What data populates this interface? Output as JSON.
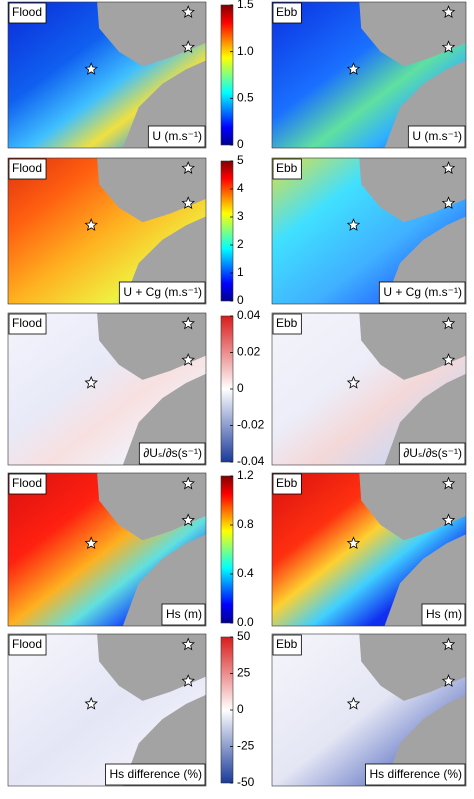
{
  "figure": {
    "rows": [
      {
        "left_label": "Flood",
        "right_label": "Ebb",
        "unit": "U (m.s⁻¹)",
        "colormap": "jet",
        "ylim": [
          0,
          1.5
        ],
        "yticks": [
          0,
          0.5,
          {
            "value": 1,
            "label": "1.0"
          },
          1.5
        ]
      },
      {
        "left_label": "Flood",
        "right_label": "Ebb",
        "unit": "U + Cg (m.s⁻¹)",
        "colormap": "jet",
        "ylim": [
          0,
          5
        ],
        "yticks": [
          0,
          1,
          2,
          3,
          4,
          5
        ]
      },
      {
        "left_label": "Flood",
        "right_label": "Ebb",
        "unit": "∂Uₛ/∂s(s⁻¹)",
        "colormap": "diverging",
        "ylim": [
          -0.04,
          0.04
        ],
        "yticks": [
          -0.04,
          -0.02,
          0,
          0.02,
          0.04
        ]
      },
      {
        "left_label": "Flood",
        "right_label": "Ebb",
        "unit": "Hs (m)",
        "colormap": "jet",
        "ylim": [
          0,
          1.2
        ],
        "yticks": [
          {
            "value": 0,
            "label": "0.0"
          },
          0.4,
          0.8,
          1.2
        ]
      },
      {
        "left_label": "Flood",
        "right_label": "Ebb",
        "unit": "Hs difference (%)",
        "colormap": "diverging",
        "ylim": [
          -50,
          50
        ],
        "yticks": [
          -50,
          -25,
          0,
          25,
          50
        ]
      }
    ]
  }
}
